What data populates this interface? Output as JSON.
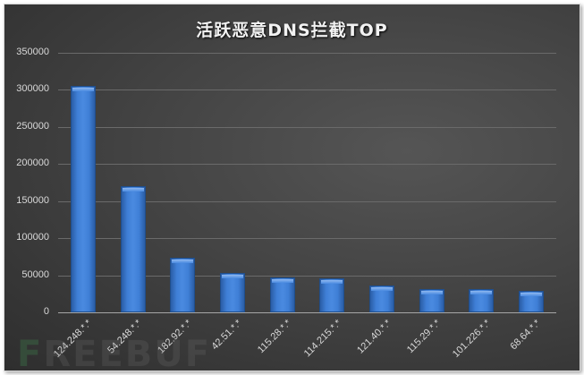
{
  "chart_data": {
    "type": "bar",
    "title": "活跃恶意DNS拦截TOP",
    "xlabel": "",
    "ylabel": "",
    "ylim": [
      0,
      350000
    ],
    "yticks": [
      0,
      50000,
      100000,
      150000,
      200000,
      250000,
      300000,
      350000
    ],
    "ytick_labels": [
      "0",
      "50000",
      "100000",
      "150000",
      "200000",
      "250000",
      "300000",
      "350000"
    ],
    "grid": true,
    "legend": null,
    "categories": [
      "124.248.*.*",
      "54.248.*.*",
      "182.92.*.*",
      "42.51.*.*",
      "115.28.*.*",
      "114.215.*.*",
      "121.40.*.*",
      "115.29.*.*",
      "101.226.*.*",
      "68.64.*.*"
    ],
    "values": [
      305000,
      170000,
      73500,
      53000,
      47000,
      45500,
      36000,
      31500,
      31500,
      29000
    ],
    "bar_color": "#3f7fd6",
    "background_color": "#404040"
  },
  "watermark": {
    "prefix": "F",
    "rest": "REEBUF"
  }
}
